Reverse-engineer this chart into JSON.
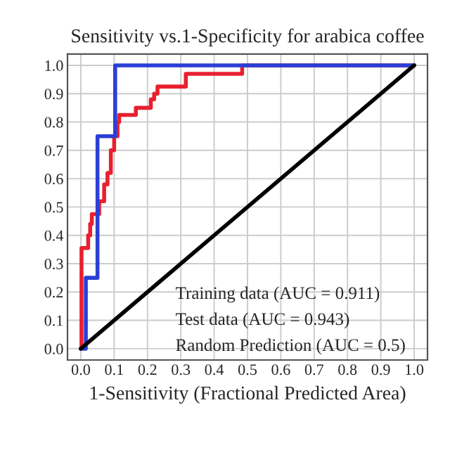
{
  "chart_data": {
    "type": "step",
    "title": "Sensitivity vs.1-Specificity for arabica coffee",
    "xlabel": "1-Sensitivity (Fractional Predicted Area)",
    "series": [
      {
        "color": "#e8202f",
        "x": [
          0.0,
          0.002,
          0.002,
          0.017,
          0.022,
          0.028,
          0.033,
          0.05,
          0.055,
          0.065,
          0.07,
          0.08,
          0.09,
          0.1,
          0.11,
          0.115,
          0.165,
          0.205,
          0.21,
          0.22,
          0.23,
          0.305,
          0.315,
          0.484,
          0.484,
          1.0
        ],
        "values": [
          0.0,
          0.0,
          0.355,
          0.355,
          0.4,
          0.44,
          0.475,
          0.475,
          0.52,
          0.52,
          0.58,
          0.62,
          0.7,
          0.75,
          0.8,
          0.825,
          0.85,
          0.85,
          0.88,
          0.9,
          0.925,
          0.925,
          0.97,
          0.97,
          1.0,
          1.0
        ]
      },
      {
        "color": "#2b3fd6",
        "x": [
          0.0,
          0.015,
          0.015,
          0.05,
          0.05,
          0.103,
          0.103,
          1.0
        ],
        "values": [
          0.0,
          0.0,
          0.25,
          0.25,
          0.75,
          0.75,
          1.0,
          1.0
        ]
      },
      {
        "type": "line",
        "color": "#000000",
        "x": [
          0.0,
          1.0
        ],
        "values": [
          0.0,
          1.0
        ]
      }
    ],
    "annotations": [
      "Training data (AUC = 0.911)",
      "Test data (AUC = 0.943)",
      "Random Prediction (AUC = 0.5)"
    ],
    "xlim": [
      -0.04,
      1.04
    ],
    "ylim": [
      -0.04,
      1.04
    ],
    "xticks": [
      {
        "value": 0.0,
        "label": "0.0"
      },
      0.1,
      0.2,
      0.3,
      0.4,
      0.5,
      0.6,
      0.7,
      0.8,
      0.9,
      {
        "value": 1.0,
        "label": "1.0"
      }
    ],
    "yticks": [
      {
        "value": 0.0,
        "label": "0.0"
      },
      0.1,
      0.2,
      0.3,
      0.4,
      0.5,
      0.6,
      0.7,
      0.8,
      0.9,
      {
        "value": 1.0,
        "label": "1.0"
      }
    ],
    "grid": true
  }
}
